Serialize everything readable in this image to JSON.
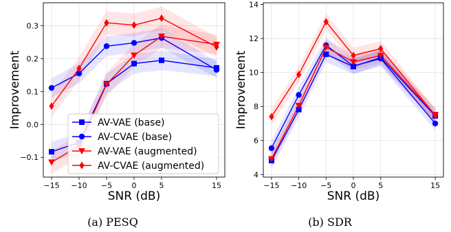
{
  "chart_data": [
    {
      "type": "line",
      "caption": "(a)  PESQ",
      "xlabel": "SNR (dB)",
      "ylabel": "Improvement",
      "x": [
        -15,
        -10,
        -5,
        0,
        5,
        15
      ],
      "xticks": [
        "−15",
        "−10",
        "−5",
        "0",
        "5",
        "15"
      ],
      "xlim": [
        -16.5,
        16.5
      ],
      "ylim": [
        -0.16,
        0.37
      ],
      "yticks": [
        "−0.1",
        "0.0",
        "0.1",
        "0.2",
        "0.3"
      ],
      "ytick_values": [
        -0.1,
        0.0,
        0.1,
        0.2,
        0.3
      ],
      "grid": true,
      "legend_position": "lower-center",
      "series": [
        {
          "name": "AV-VAE (base)",
          "color": "#0000ff",
          "marker": "square",
          "values": [
            -0.083,
            -0.055,
            0.124,
            0.185,
            0.195,
            0.172
          ],
          "band": [
            0.03,
            0.03,
            0.03,
            0.03,
            0.03,
            0.025
          ]
        },
        {
          "name": "AV-CVAE (base)",
          "color": "#0000ff",
          "marker": "circle",
          "values": [
            0.111,
            0.155,
            0.238,
            0.248,
            0.263,
            0.166
          ],
          "band": [
            0.03,
            0.03,
            0.03,
            0.03,
            0.03,
            0.025
          ]
        },
        {
          "name": "AV-VAE (augmented)",
          "color": "#ff0000",
          "marker": "triangle-down",
          "values": [
            -0.115,
            -0.065,
            0.122,
            0.21,
            0.268,
            0.243
          ],
          "band": [
            0.035,
            0.035,
            0.035,
            0.035,
            0.035,
            0.03
          ]
        },
        {
          "name": "AV-CVAE (augmented)",
          "color": "#ff0000",
          "marker": "diamond",
          "values": [
            0.056,
            0.17,
            0.309,
            0.302,
            0.323,
            0.236
          ],
          "band": [
            0.035,
            0.035,
            0.035,
            0.035,
            0.035,
            0.03
          ]
        }
      ]
    },
    {
      "type": "line",
      "caption": "(b)  SDR",
      "xlabel": "SNR (dB)",
      "ylabel": "Improvement",
      "x": [
        -15,
        -10,
        -5,
        0,
        5,
        15
      ],
      "xticks": [
        "−15",
        "−10",
        "−5",
        "0",
        "5",
        "15"
      ],
      "xlim": [
        -16.5,
        16.5
      ],
      "ylim": [
        3.85,
        14.1
      ],
      "yticks": [
        "4",
        "6",
        "8",
        "10",
        "12",
        "14"
      ],
      "ytick_values": [
        4,
        6,
        8,
        10,
        12,
        14
      ],
      "grid": true,
      "legend_position": "none",
      "series": [
        {
          "name": "AV-VAE (base)",
          "color": "#0000ff",
          "marker": "square",
          "values": [
            4.82,
            7.82,
            11.07,
            10.35,
            10.88,
            7.45
          ],
          "band": [
            0.45,
            0.45,
            0.45,
            0.45,
            0.45,
            0.4
          ]
        },
        {
          "name": "AV-CVAE (base)",
          "color": "#0000ff",
          "marker": "circle",
          "values": [
            5.55,
            8.68,
            11.6,
            10.38,
            10.82,
            7.0
          ],
          "band": [
            0.45,
            0.45,
            0.45,
            0.45,
            0.45,
            0.4
          ]
        },
        {
          "name": "AV-VAE (augmented)",
          "color": "#ff0000",
          "marker": "triangle-down",
          "values": [
            4.92,
            8.05,
            11.48,
            10.62,
            11.0,
            7.52
          ],
          "band": [
            0.45,
            0.45,
            0.45,
            0.45,
            0.45,
            0.4
          ]
        },
        {
          "name": "AV-CVAE (augmented)",
          "color": "#ff0000",
          "marker": "diamond",
          "values": [
            7.4,
            9.88,
            12.98,
            11.0,
            11.4,
            7.48
          ],
          "band": [
            0.45,
            0.45,
            0.45,
            0.45,
            0.45,
            0.4
          ]
        }
      ]
    }
  ]
}
